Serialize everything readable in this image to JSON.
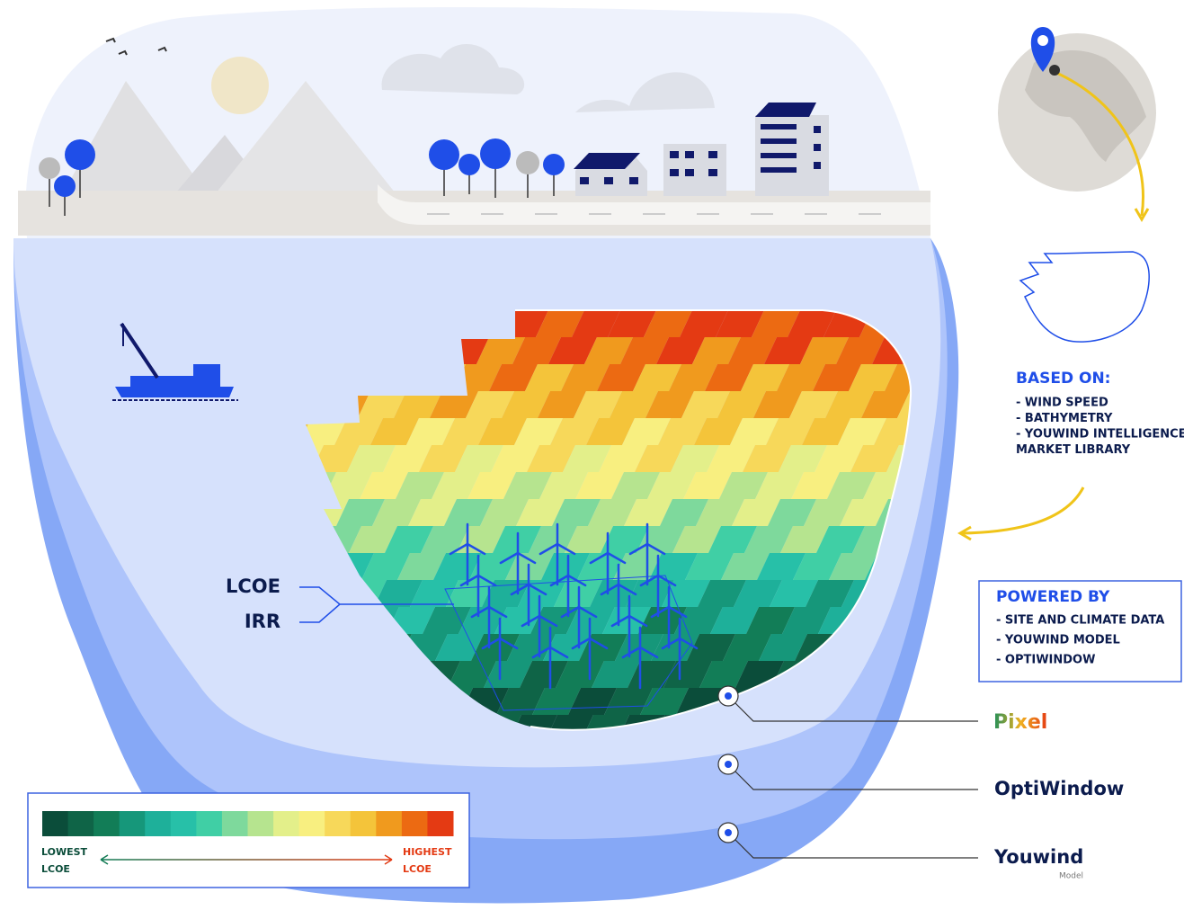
{
  "illustration": {
    "labels": {
      "lcoe": "LCOE",
      "irr": "IRR"
    }
  },
  "based_on": {
    "title": "BASED ON:",
    "items": [
      "- WIND SPEED",
      "- BATHYMETRY",
      "- YOUWIND INTELLIGENCE",
      "MARKET LIBRARY"
    ]
  },
  "powered_by": {
    "title": "POWERED BY",
    "items": [
      "- SITE AND CLIMATE DATA",
      "- YOUWIND MODEL",
      "- OPTIWINDOW"
    ]
  },
  "products": [
    {
      "name": "Pixel"
    },
    {
      "name": "OptiWindow"
    },
    {
      "name": "Youwind",
      "subtitle": "Model"
    }
  ],
  "legend": {
    "low_label": [
      "LOWEST",
      "LCOE"
    ],
    "high_label": [
      "HIGHEST",
      "LCOE"
    ],
    "colors": [
      "#0b4d3a",
      "#0f6447",
      "#127d57",
      "#16977a",
      "#1eb09a",
      "#27c0a8",
      "#40cfa5",
      "#7ed99c",
      "#b6e48f",
      "#e3ef8a",
      "#f8ef80",
      "#f7d85a",
      "#f4c43a",
      "#f09a1e",
      "#ec6a12",
      "#e43a13"
    ]
  }
}
